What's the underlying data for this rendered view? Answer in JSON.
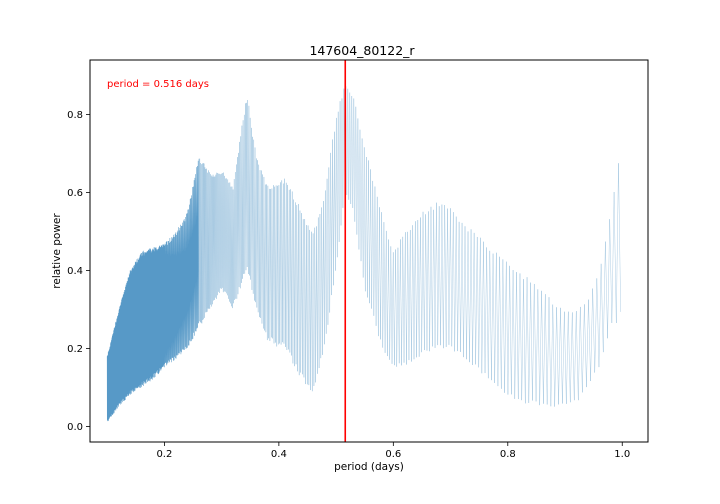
{
  "chart_data": {
    "type": "line",
    "title": "147604_80122_r",
    "xlabel": "period (days)",
    "ylabel": "relative power",
    "xlim": [
      0.07,
      1.045
    ],
    "ylim": [
      -0.04,
      0.94
    ],
    "xticks": [
      0.2,
      0.4,
      0.6,
      0.8,
      1.0
    ],
    "xtick_labels": [
      "0.2",
      "0.4",
      "0.6",
      "0.8",
      "1.0"
    ],
    "yticks": [
      0.0,
      0.2,
      0.4,
      0.6,
      0.8
    ],
    "ytick_labels": [
      "0.0",
      "0.2",
      "0.4",
      "0.6",
      "0.8"
    ],
    "grid": false,
    "annotation": {
      "text": "period = 0.516 days",
      "color": "#ff0000"
    },
    "best_period_line": {
      "x": 0.516,
      "color": "#ff0000"
    },
    "series_color": "#1f77b4",
    "envelope": {
      "x": [
        0.1,
        0.12,
        0.14,
        0.16,
        0.18,
        0.2,
        0.22,
        0.24,
        0.26,
        0.28,
        0.3,
        0.32,
        0.34,
        0.345,
        0.36,
        0.38,
        0.4,
        0.41,
        0.42,
        0.44,
        0.46,
        0.48,
        0.5,
        0.516,
        0.53,
        0.55,
        0.58,
        0.6,
        0.62,
        0.65,
        0.68,
        0.7,
        0.74,
        0.78,
        0.82,
        0.86,
        0.88,
        0.9,
        0.92,
        0.94,
        0.96,
        0.98,
        1.0
      ],
      "upper": [
        0.18,
        0.3,
        0.4,
        0.45,
        0.46,
        0.47,
        0.5,
        0.55,
        0.7,
        0.65,
        0.66,
        0.62,
        0.82,
        0.85,
        0.7,
        0.62,
        0.63,
        0.64,
        0.62,
        0.55,
        0.5,
        0.6,
        0.8,
        0.88,
        0.85,
        0.72,
        0.55,
        0.45,
        0.5,
        0.55,
        0.58,
        0.56,
        0.5,
        0.45,
        0.4,
        0.35,
        0.32,
        0.3,
        0.3,
        0.33,
        0.4,
        0.55,
        0.75
      ],
      "lower": [
        0.01,
        0.05,
        0.08,
        0.1,
        0.12,
        0.15,
        0.17,
        0.2,
        0.25,
        0.3,
        0.35,
        0.3,
        0.38,
        0.4,
        0.3,
        0.22,
        0.2,
        0.2,
        0.17,
        0.12,
        0.08,
        0.2,
        0.4,
        0.6,
        0.55,
        0.35,
        0.2,
        0.15,
        0.15,
        0.18,
        0.2,
        0.2,
        0.15,
        0.1,
        0.06,
        0.05,
        0.05,
        0.05,
        0.06,
        0.1,
        0.15,
        0.25,
        0.28
      ]
    }
  }
}
